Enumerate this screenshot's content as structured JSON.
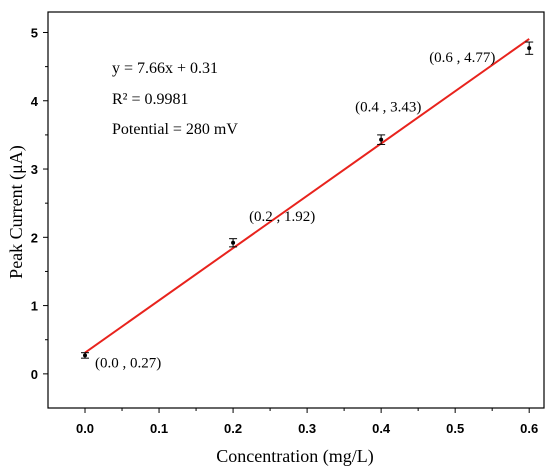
{
  "chart_data": {
    "type": "scatter",
    "xlabel": "Concentration (mg/L)",
    "ylabel": "Peak Current (μA)",
    "xlim": [
      -0.05,
      0.62
    ],
    "ylim": [
      -0.5,
      5.3
    ],
    "x_ticks": [
      "0.0",
      "0.1",
      "0.2",
      "0.3",
      "0.4",
      "0.5",
      "0.6"
    ],
    "y_ticks": [
      "0",
      "1",
      "2",
      "3",
      "4",
      "5"
    ],
    "grid": false,
    "points": [
      {
        "x": 0.0,
        "y": 0.27,
        "err": 0.04,
        "label": "(0.0 , 0.27)"
      },
      {
        "x": 0.2,
        "y": 1.92,
        "err": 0.06,
        "label": "(0.2 , 1.92)"
      },
      {
        "x": 0.4,
        "y": 3.43,
        "err": 0.07,
        "label": "(0.4 , 3.43)"
      },
      {
        "x": 0.6,
        "y": 4.77,
        "err": 0.09,
        "label": "(0.6 , 4.77)"
      }
    ],
    "fit": {
      "slope": 7.66,
      "intercept": 0.31,
      "x_range": [
        0.0,
        0.6
      ],
      "color": "#e8231d"
    },
    "annotations": {
      "equation": "y = 7.66x + 0.31",
      "r2": "R² = 0.9981",
      "potential": "Potential = 280 mV"
    }
  }
}
